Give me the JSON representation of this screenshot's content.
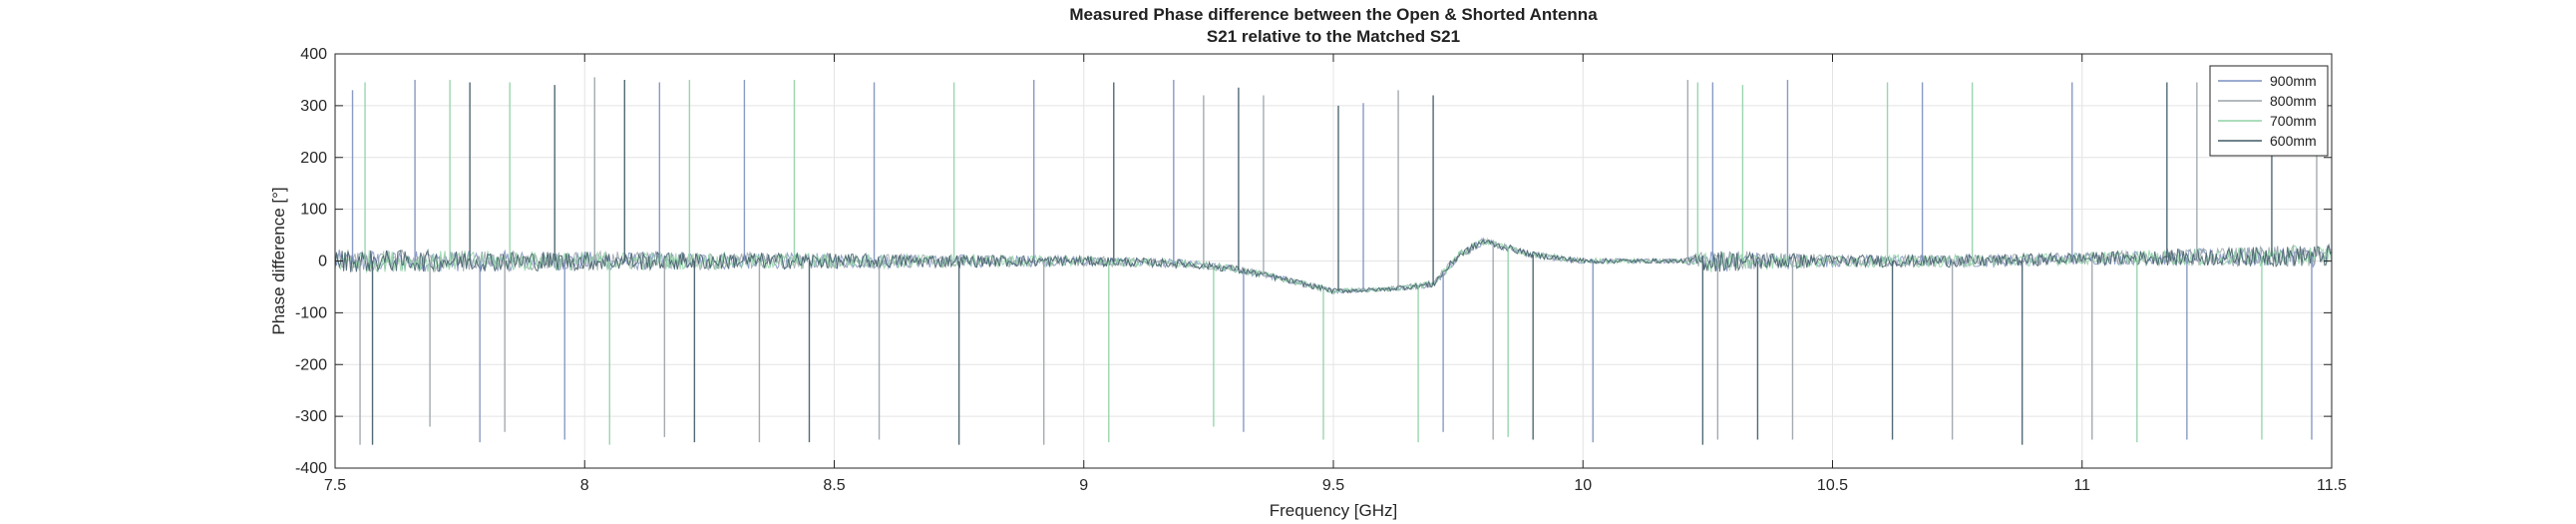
{
  "chart_data": {
    "type": "line",
    "title": "Measured Phase difference between the Open & Shorted Antenna",
    "subtitle": "S21 relative to the Matched S21",
    "xlabel": "Frequency [GHz]",
    "ylabel": "Phase difference [°]",
    "xlim": [
      7.5,
      11.5
    ],
    "ylim": [
      -400,
      400
    ],
    "x_ticks": [
      "7.5",
      "8",
      "8.5",
      "9",
      "9.5",
      "10",
      "10.5",
      "11",
      "11.5"
    ],
    "y_ticks": [
      "400",
      "300",
      "200",
      "100",
      "0",
      "-100",
      "-200",
      "-300",
      "-400"
    ],
    "grid": true,
    "legend_position": "top-right",
    "series": [
      {
        "name": "900mm",
        "color": "#7c8fbf"
      },
      {
        "name": "800mm",
        "color": "#9aa3a8"
      },
      {
        "name": "700mm",
        "color": "#8fd2a6"
      },
      {
        "name": "600mm",
        "color": "#3f5a66"
      }
    ],
    "trend": {
      "x": [
        7.5,
        8.0,
        8.5,
        9.0,
        9.2,
        9.3,
        9.4,
        9.5,
        9.6,
        9.7,
        9.75,
        9.8,
        9.85,
        9.9,
        10.0,
        10.2,
        10.3,
        10.5,
        10.8,
        11.0,
        11.5
      ],
      "y": [
        0,
        0,
        0,
        0,
        -5,
        -15,
        -35,
        -58,
        -55,
        -45,
        10,
        38,
        25,
        12,
        0,
        0,
        0,
        0,
        0,
        5,
        10
      ]
    },
    "noise_amplitude": {
      "x": [
        7.5,
        8.5,
        9.2,
        9.6,
        9.75,
        9.9,
        10.2,
        10.25,
        10.5,
        11.0,
        11.5
      ],
      "y": [
        22,
        15,
        8,
        4,
        8,
        6,
        4,
        22,
        12,
        12,
        22
      ]
    },
    "phase_jumps": [
      {
        "x": 7.535,
        "y_end": 330
      },
      {
        "x": 7.55,
        "y_end": -355
      },
      {
        "x": 7.56,
        "y_end": 345
      },
      {
        "x": 7.575,
        "y_end": -355
      },
      {
        "x": 7.66,
        "y_end": 350
      },
      {
        "x": 7.69,
        "y_end": -320
      },
      {
        "x": 7.73,
        "y_end": 350
      },
      {
        "x": 7.77,
        "y_end": 345
      },
      {
        "x": 7.79,
        "y_end": -350
      },
      {
        "x": 7.84,
        "y_end": -330
      },
      {
        "x": 7.85,
        "y_end": 345
      },
      {
        "x": 7.94,
        "y_end": 340
      },
      {
        "x": 7.96,
        "y_end": -345
      },
      {
        "x": 8.02,
        "y_end": 355
      },
      {
        "x": 8.05,
        "y_end": -355
      },
      {
        "x": 8.08,
        "y_end": 350
      },
      {
        "x": 8.15,
        "y_end": 345
      },
      {
        "x": 8.16,
        "y_end": -340
      },
      {
        "x": 8.21,
        "y_end": 350
      },
      {
        "x": 8.22,
        "y_end": -350
      },
      {
        "x": 8.32,
        "y_end": 350
      },
      {
        "x": 8.35,
        "y_end": -350
      },
      {
        "x": 8.42,
        "y_end": 350
      },
      {
        "x": 8.45,
        "y_end": -350
      },
      {
        "x": 8.58,
        "y_end": 345
      },
      {
        "x": 8.59,
        "y_end": -345
      },
      {
        "x": 8.74,
        "y_end": 345
      },
      {
        "x": 8.75,
        "y_end": -355
      },
      {
        "x": 8.9,
        "y_end": 350
      },
      {
        "x": 8.92,
        "y_end": -355
      },
      {
        "x": 9.05,
        "y_end": -350
      },
      {
        "x": 9.06,
        "y_end": 345
      },
      {
        "x": 9.18,
        "y_end": 350
      },
      {
        "x": 9.24,
        "y_end": 320
      },
      {
        "x": 9.26,
        "y_end": -320
      },
      {
        "x": 9.31,
        "y_end": 335
      },
      {
        "x": 9.32,
        "y_end": -330
      },
      {
        "x": 9.36,
        "y_end": 320
      },
      {
        "x": 9.48,
        "y_end": -345
      },
      {
        "x": 9.51,
        "y_end": 300
      },
      {
        "x": 9.56,
        "y_end": 305
      },
      {
        "x": 9.63,
        "y_end": 330
      },
      {
        "x": 9.67,
        "y_end": -350
      },
      {
        "x": 9.7,
        "y_end": 320
      },
      {
        "x": 9.72,
        "y_end": -330
      },
      {
        "x": 9.82,
        "y_end": -345
      },
      {
        "x": 9.85,
        "y_end": -340
      },
      {
        "x": 9.9,
        "y_end": -345
      },
      {
        "x": 10.02,
        "y_end": -350
      },
      {
        "x": 10.21,
        "y_end": 350
      },
      {
        "x": 10.23,
        "y_end": 345
      },
      {
        "x": 10.24,
        "y_end": -355
      },
      {
        "x": 10.26,
        "y_end": 345
      },
      {
        "x": 10.27,
        "y_end": -345
      },
      {
        "x": 10.32,
        "y_end": 340
      },
      {
        "x": 10.35,
        "y_end": -345
      },
      {
        "x": 10.41,
        "y_end": 350
      },
      {
        "x": 10.42,
        "y_end": -345
      },
      {
        "x": 10.61,
        "y_end": 345
      },
      {
        "x": 10.62,
        "y_end": -345
      },
      {
        "x": 10.68,
        "y_end": 345
      },
      {
        "x": 10.74,
        "y_end": -345
      },
      {
        "x": 10.78,
        "y_end": 345
      },
      {
        "x": 10.88,
        "y_end": -355
      },
      {
        "x": 10.98,
        "y_end": 345
      },
      {
        "x": 11.02,
        "y_end": -345
      },
      {
        "x": 11.11,
        "y_end": -350
      },
      {
        "x": 11.17,
        "y_end": 345
      },
      {
        "x": 11.21,
        "y_end": -345
      },
      {
        "x": 11.23,
        "y_end": 345
      },
      {
        "x": 11.36,
        "y_end": -345
      },
      {
        "x": 11.38,
        "y_end": 340
      },
      {
        "x": 11.46,
        "y_end": -345
      },
      {
        "x": 11.47,
        "y_end": 350
      }
    ]
  }
}
